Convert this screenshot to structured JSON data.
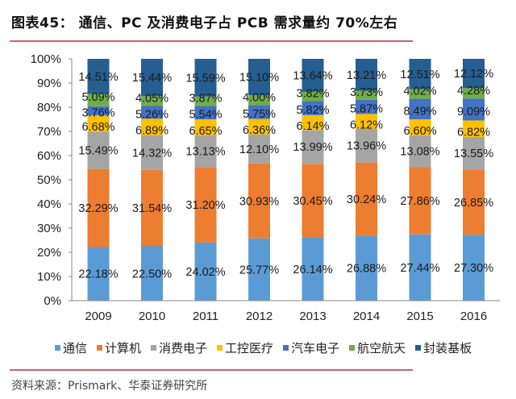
{
  "header": {
    "title": "图表45：  通信、PC 及消费电子占 PCB 需求量约 70%左右"
  },
  "footer": {
    "source": "资料来源：Prismark、华泰证券研究所"
  },
  "chart_data": {
    "type": "bar",
    "stacked": true,
    "title": "通信、PC 及消费电子占 PCB 需求量约 70%左右",
    "xlabel": "",
    "ylabel": "",
    "ylim": [
      0,
      100
    ],
    "y_ticks": [
      "0%",
      "10%",
      "20%",
      "30%",
      "40%",
      "50%",
      "60%",
      "70%",
      "80%",
      "90%",
      "100%"
    ],
    "categories": [
      "2009",
      "2010",
      "2011",
      "2012",
      "2013",
      "2014",
      "2015",
      "2016"
    ],
    "legend_position": "bottom",
    "grid": false,
    "series": [
      {
        "name": "通信",
        "color": "#5b9bd5",
        "values": [
          22.18,
          22.5,
          24.02,
          25.77,
          26.14,
          26.88,
          27.44,
          27.3
        ]
      },
      {
        "name": "计算机",
        "color": "#ed7d31",
        "values": [
          32.29,
          31.54,
          31.2,
          30.93,
          30.45,
          30.24,
          27.86,
          26.85
        ]
      },
      {
        "name": "消费电子",
        "color": "#a5a5a5",
        "values": [
          15.49,
          14.32,
          13.13,
          12.1,
          13.99,
          13.96,
          13.08,
          13.55
        ]
      },
      {
        "name": "工控医疗",
        "color": "#ffc000",
        "values": [
          6.68,
          6.89,
          6.65,
          6.36,
          6.14,
          6.12,
          6.6,
          6.82
        ]
      },
      {
        "name": "汽车电子",
        "color": "#4472c4",
        "values": [
          3.76,
          5.26,
          5.54,
          5.75,
          5.82,
          5.87,
          8.49,
          9.09
        ]
      },
      {
        "name": "航空航天",
        "color": "#70ad47",
        "values": [
          5.09,
          4.05,
          3.87,
          4.0,
          3.82,
          3.73,
          4.02,
          4.28
        ]
      },
      {
        "name": "封装基板",
        "color": "#255e91",
        "values": [
          14.51,
          15.44,
          15.59,
          15.1,
          13.64,
          13.21,
          12.51,
          12.12
        ]
      }
    ],
    "value_suffix": "%"
  }
}
